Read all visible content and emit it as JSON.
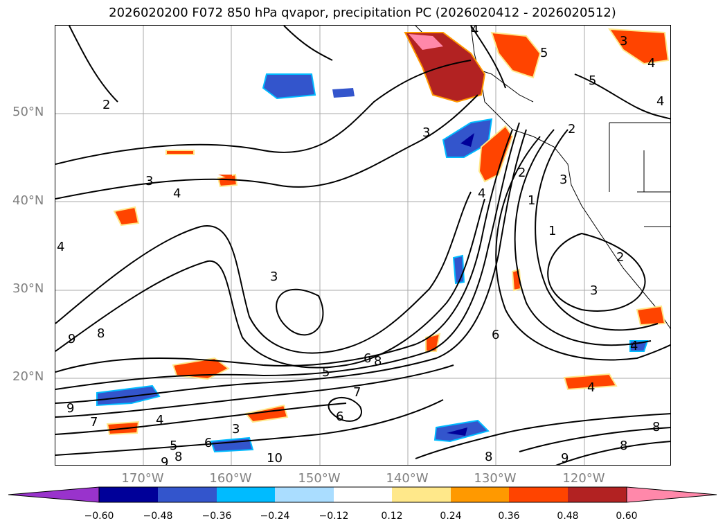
{
  "title": "2026020200 F072 850 hPa qvapor, precipitation PC (2026020412 - 2026020512)",
  "lat_labels": [
    "50°N",
    "40°N",
    "30°N",
    "20°N"
  ],
  "lon_labels": [
    "170°W",
    "160°W",
    "150°W",
    "140°W",
    "130°W",
    "120°W"
  ],
  "colorbar": {
    "colors": [
      "#9933cc",
      "#000099",
      "#3355cc",
      "#00bbff",
      "#aaddff",
      "#ffffff",
      "#ffe88a",
      "#ff9900",
      "#ff4400",
      "#b22222",
      "#ff88aa"
    ],
    "tick_labels": [
      "−0.60",
      "−0.48",
      "−0.36",
      "−0.24",
      "−0.12",
      "0.12",
      "0.24",
      "0.36",
      "0.48",
      "0.60"
    ]
  },
  "contour_labels": [
    "2",
    "3",
    "4",
    "3",
    "4",
    "3",
    "2",
    "1",
    "9",
    "8",
    "9",
    "7",
    "4",
    "3",
    "5",
    "6",
    "9",
    "8",
    "10",
    "6",
    "7",
    "8",
    "5",
    "6",
    "6",
    "4",
    "8",
    "9",
    "8",
    "3",
    "2",
    "1",
    "3",
    "4",
    "5",
    "5",
    "4",
    "3",
    "4",
    "2",
    "4",
    "8",
    "4"
  ]
}
